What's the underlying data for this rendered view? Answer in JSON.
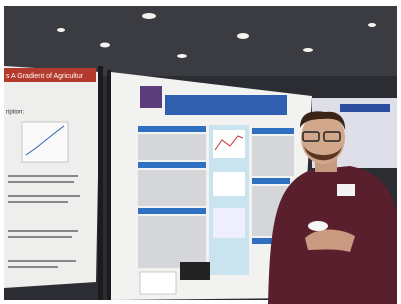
{
  "scene": {
    "left_poster_title": "s A Gradient of Agricultur",
    "left_poster_label": "ription:"
  }
}
